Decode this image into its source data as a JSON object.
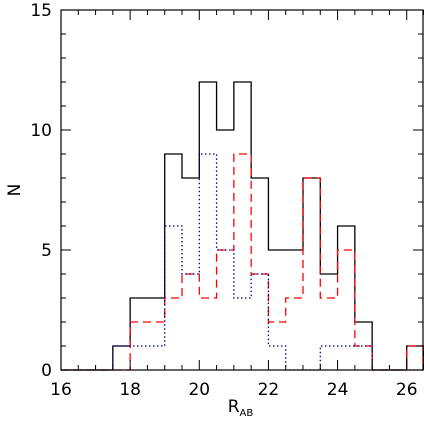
{
  "chart_data": {
    "type": "histogram",
    "xlabel": "R",
    "xlabel_subscript": "AB",
    "ylabel": "N",
    "xlim": [
      16,
      26.5
    ],
    "ylim": [
      0,
      15
    ],
    "xticks": [
      "16",
      "18",
      "20",
      "22",
      "24",
      "26"
    ],
    "yticks": [
      "0",
      "5",
      "10",
      "15"
    ],
    "bin_width": 0.5,
    "bin_edges": [
      16,
      16.5,
      17,
      17.5,
      18,
      18.5,
      19,
      19.5,
      20,
      20.5,
      21,
      21.5,
      22,
      22.5,
      23,
      23.5,
      24,
      24.5,
      25,
      25.5,
      26,
      26.5
    ],
    "series": [
      {
        "color": "#000000",
        "linestyle": "solid",
        "values": [
          0,
          0,
          0,
          1,
          3,
          3,
          9,
          8,
          12,
          10,
          12,
          8,
          5,
          5,
          8,
          4,
          6,
          2,
          0,
          0,
          1
        ]
      },
      {
        "color": "#ff0000",
        "linestyle": "dashed",
        "values": [
          0,
          0,
          0,
          0,
          2,
          2,
          3,
          4,
          3,
          5,
          9,
          4,
          2,
          3,
          8,
          3,
          5,
          1,
          0,
          0,
          1
        ]
      },
      {
        "color": "#00008b",
        "linestyle": "dotted",
        "values": [
          0,
          0,
          0,
          1,
          1,
          1,
          6,
          4,
          9,
          5,
          3,
          4,
          1,
          0,
          0,
          1,
          1,
          1,
          0,
          0,
          0
        ]
      }
    ]
  }
}
